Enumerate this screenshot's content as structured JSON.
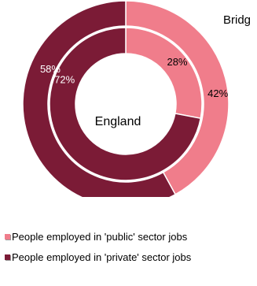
{
  "chart_data": {
    "type": "pie",
    "variant": "nested-donut",
    "center_label": "England",
    "outer_series_label": "Bridg",
    "categories": [
      "People employed in 'public' sector jobs",
      "People employed in 'private' sector jobs"
    ],
    "colors": [
      "#f07d8b",
      "#7b1b36"
    ],
    "series": [
      {
        "name": "England",
        "ring": "inner",
        "values": [
          28,
          72
        ],
        "labels": [
          "28%",
          "72%"
        ]
      },
      {
        "name": "Bridg",
        "ring": "outer",
        "values": [
          42,
          58
        ],
        "labels": [
          "42%",
          "58%"
        ]
      }
    ],
    "legend_position": "bottom"
  }
}
